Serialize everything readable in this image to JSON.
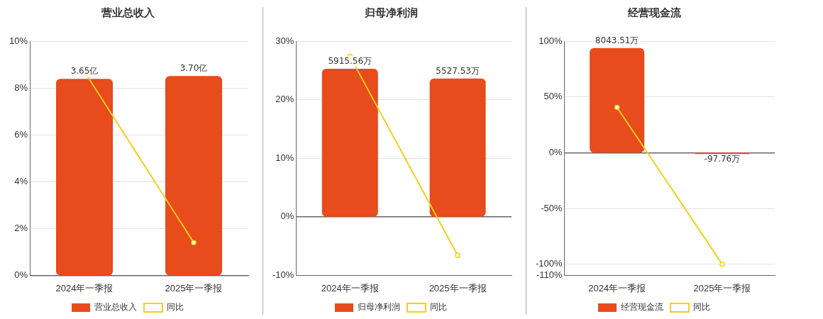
{
  "chart_data": [
    {
      "type": "bar",
      "title": "营业总收入",
      "categories": [
        "2024年一季报",
        "2025年一季报"
      ],
      "series": [
        {
          "name": "营业总收入",
          "color": "#e84b1c",
          "values": [
            3.65,
            3.7
          ],
          "axis": "y2",
          "value_labels": [
            "3.65亿",
            "3.70亿"
          ]
        },
        {
          "type": "line",
          "name": "同比",
          "color": "#f2d01b",
          "values": [
            8.7,
            1.4
          ],
          "marker": "circle"
        }
      ],
      "ylim": [
        0,
        10
      ],
      "yticks": [
        {
          "value": 0,
          "label": "0%"
        },
        {
          "value": 2,
          "label": "2%"
        },
        {
          "value": 4,
          "label": "4%"
        },
        {
          "value": 6,
          "label": "6%"
        },
        {
          "value": 8,
          "label": "8%"
        },
        {
          "value": 10,
          "label": "10%"
        }
      ],
      "y2lim": [
        0,
        4.35
      ],
      "grid": "y",
      "legend": "bottom",
      "tick_labels": "xy"
    },
    {
      "type": "bar",
      "title": "归母净利润",
      "categories": [
        "2024年一季报",
        "2025年一季报"
      ],
      "series": [
        {
          "name": "归母净利润",
          "color": "#e84b1c",
          "values": [
            5915.56,
            5527.53
          ],
          "axis": "y2",
          "value_labels": [
            "5915.56万",
            "5527.53万"
          ]
        },
        {
          "type": "line",
          "name": "同比",
          "color": "#f2d01b",
          "values": [
            27.4,
            -6.6
          ],
          "marker": "circle"
        }
      ],
      "ylim": [
        -10,
        30
      ],
      "yticks": [
        {
          "value": -10,
          "label": "-10%"
        },
        {
          "value": 0,
          "label": "0%"
        },
        {
          "value": 10,
          "label": "10%"
        },
        {
          "value": 20,
          "label": "20%"
        },
        {
          "value": 30,
          "label": "30%"
        }
      ],
      "y2lim": [
        -2340,
        7020
      ],
      "grid": "y",
      "legend": "bottom",
      "tick_labels": "xy"
    },
    {
      "type": "bar",
      "title": "经营现金流",
      "categories": [
        "2024年一季报",
        "2025年一季报"
      ],
      "series": [
        {
          "name": "经营现金流",
          "color": "#e84b1c",
          "values": [
            8043.51,
            -97.76
          ],
          "axis": "y2",
          "value_labels": [
            "8043.51万",
            "-97.76万"
          ]
        },
        {
          "type": "line",
          "name": "同比",
          "color": "#f2d01b",
          "values": [
            40.6,
            -100
          ],
          "marker": "circle"
        }
      ],
      "ylim": [
        -110,
        100
      ],
      "yticks": [
        {
          "value": -110,
          "label": "-110%"
        },
        {
          "value": -100,
          "label": "-100%"
        },
        {
          "value": -50,
          "label": "-50%"
        },
        {
          "value": 0,
          "label": "0%"
        },
        {
          "value": 50,
          "label": "50%"
        },
        {
          "value": 100,
          "label": "100%"
        }
      ],
      "y2lim": [
        -9438,
        8580
      ],
      "grid": "y",
      "legend": "bottom",
      "tick_labels": "xy"
    }
  ]
}
